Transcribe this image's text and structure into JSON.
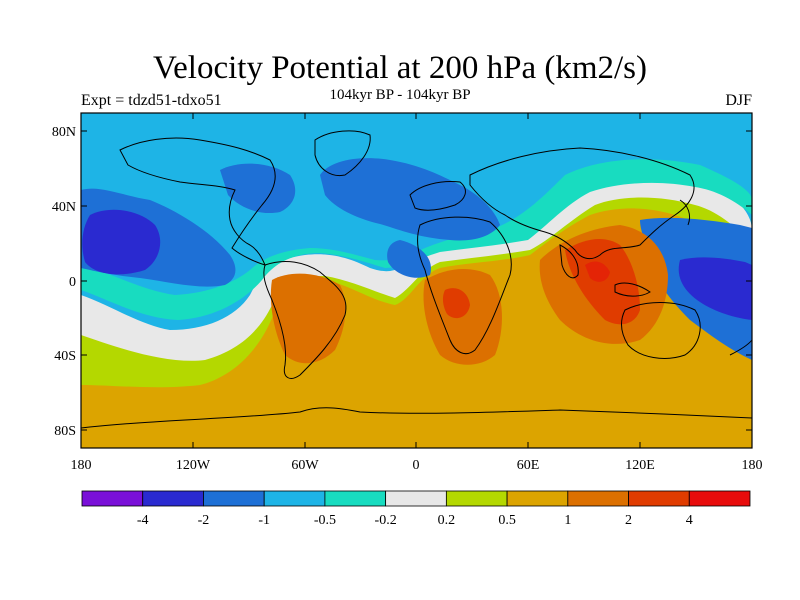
{
  "header": {
    "title": "Velocity Potential at 200 hPa (km2/s)",
    "subtitle": "104kyr BP - 104kyr BP",
    "left_label": "Expt = tdzd51-tdxo51",
    "right_label": "DJF"
  },
  "axes": {
    "lat_ticks": [
      "80N",
      "40N",
      "0",
      "40S",
      "80S"
    ],
    "lon_ticks": [
      "180",
      "120W",
      "60W",
      "0",
      "60E",
      "120E",
      "180"
    ]
  },
  "colorbar": {
    "colors": [
      "#7a10d8",
      "#2a2ad0",
      "#1e70d6",
      "#1eb4e6",
      "#18dcc0",
      "#e8e8e8",
      "#b4d800",
      "#dca400",
      "#dc7000",
      "#e03c00",
      "#e80c0c"
    ],
    "labels": [
      "-4",
      "-2",
      "-1",
      "-0.5",
      "-0.2",
      "0.2",
      "0.5",
      "1",
      "2",
      "4"
    ]
  }
}
